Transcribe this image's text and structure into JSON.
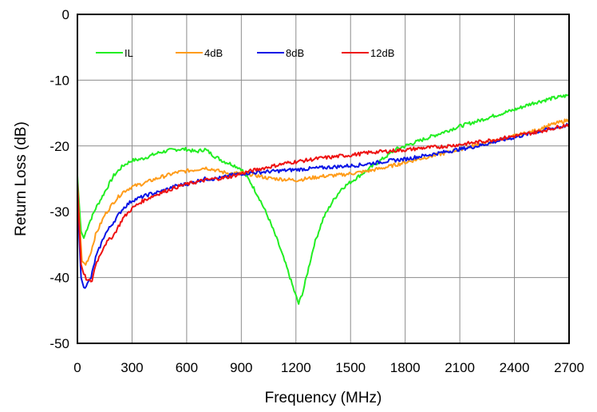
{
  "chart_data": {
    "type": "line",
    "title": "",
    "xlabel": "Frequency (MHz)",
    "ylabel": "Return Loss (dB)",
    "xlim": [
      0,
      2700
    ],
    "ylim": [
      -50,
      0
    ],
    "x_ticks": [
      0,
      300,
      600,
      900,
      1200,
      1500,
      1800,
      2100,
      2400,
      2700
    ],
    "y_ticks": [
      0,
      -10,
      -20,
      -30,
      -40,
      -50
    ],
    "grid": true,
    "legend_position": "top-left, inside plot, single row",
    "series": [
      {
        "name": "IL",
        "color": "#22ee22",
        "points": [
          [
            0,
            -24.5
          ],
          [
            10,
            -29
          ],
          [
            20,
            -33
          ],
          [
            35,
            -34
          ],
          [
            60,
            -32
          ],
          [
            100,
            -29.5
          ],
          [
            150,
            -27
          ],
          [
            200,
            -24.5
          ],
          [
            250,
            -23
          ],
          [
            300,
            -22.2
          ],
          [
            350,
            -22
          ],
          [
            400,
            -21.5
          ],
          [
            450,
            -21
          ],
          [
            500,
            -20.7
          ],
          [
            550,
            -20.5
          ],
          [
            600,
            -20.5
          ],
          [
            650,
            -20.9
          ],
          [
            700,
            -20.5
          ],
          [
            750,
            -21.5
          ],
          [
            800,
            -22.3
          ],
          [
            850,
            -22.8
          ],
          [
            900,
            -23.5
          ],
          [
            950,
            -25.5
          ],
          [
            1000,
            -28
          ],
          [
            1050,
            -31
          ],
          [
            1100,
            -34.5
          ],
          [
            1150,
            -38.5
          ],
          [
            1190,
            -42
          ],
          [
            1215,
            -44
          ],
          [
            1240,
            -42
          ],
          [
            1270,
            -38.5
          ],
          [
            1300,
            -35
          ],
          [
            1350,
            -31
          ],
          [
            1400,
            -28.5
          ],
          [
            1450,
            -26.5
          ],
          [
            1500,
            -25.5
          ],
          [
            1550,
            -24.5
          ],
          [
            1600,
            -23.5
          ],
          [
            1650,
            -22.5
          ],
          [
            1700,
            -21.5
          ],
          [
            1750,
            -20.5
          ],
          [
            1800,
            -20
          ],
          [
            1900,
            -19
          ],
          [
            2000,
            -18
          ],
          [
            2100,
            -17
          ],
          [
            2200,
            -16.2
          ],
          [
            2300,
            -15.3
          ],
          [
            2400,
            -14.5
          ],
          [
            2500,
            -13.5
          ],
          [
            2600,
            -12.8
          ],
          [
            2700,
            -12.3
          ]
        ]
      },
      {
        "name": "4dB",
        "color": "#ff9c1a",
        "points": [
          [
            0,
            -25.5
          ],
          [
            10,
            -31
          ],
          [
            25,
            -37.5
          ],
          [
            45,
            -38
          ],
          [
            70,
            -36.5
          ],
          [
            100,
            -33.5
          ],
          [
            150,
            -30.5
          ],
          [
            200,
            -28.5
          ],
          [
            250,
            -27
          ],
          [
            300,
            -26.2
          ],
          [
            350,
            -25.8
          ],
          [
            400,
            -25.3
          ],
          [
            450,
            -24.8
          ],
          [
            500,
            -24.4
          ],
          [
            550,
            -24
          ],
          [
            600,
            -23.8
          ],
          [
            650,
            -23.6
          ],
          [
            700,
            -23.3
          ],
          [
            750,
            -23.6
          ],
          [
            800,
            -24
          ],
          [
            850,
            -24.2
          ],
          [
            900,
            -24.1
          ],
          [
            950,
            -24.3
          ],
          [
            1000,
            -24.6
          ],
          [
            1050,
            -24.9
          ],
          [
            1100,
            -25
          ],
          [
            1150,
            -25.1
          ],
          [
            1200,
            -25.2
          ],
          [
            1250,
            -25
          ],
          [
            1300,
            -24.8
          ],
          [
            1350,
            -24.6
          ],
          [
            1400,
            -24.5
          ],
          [
            1450,
            -24.4
          ],
          [
            1500,
            -24.2
          ],
          [
            1550,
            -24
          ],
          [
            1600,
            -23.8
          ],
          [
            1650,
            -23.5
          ],
          [
            1700,
            -23.2
          ],
          [
            1800,
            -22.5
          ],
          [
            1900,
            -21.8
          ],
          [
            2000,
            -21.2
          ],
          [
            2100,
            -20.5
          ],
          [
            2200,
            -19.8
          ],
          [
            2300,
            -19.2
          ],
          [
            2400,
            -18.5
          ],
          [
            2500,
            -17.8
          ],
          [
            2600,
            -16.8
          ],
          [
            2700,
            -16
          ]
        ]
      },
      {
        "name": "8dB",
        "color": "#0a14e6",
        "points": [
          [
            0,
            -25.5
          ],
          [
            10,
            -34
          ],
          [
            20,
            -40
          ],
          [
            35,
            -41.5
          ],
          [
            55,
            -41
          ],
          [
            75,
            -40
          ],
          [
            100,
            -37
          ],
          [
            150,
            -33.5
          ],
          [
            200,
            -31.5
          ],
          [
            250,
            -29.5
          ],
          [
            300,
            -28.3
          ],
          [
            350,
            -27.8
          ],
          [
            400,
            -27.3
          ],
          [
            450,
            -27
          ],
          [
            500,
            -26.5
          ],
          [
            550,
            -26
          ],
          [
            600,
            -25.8
          ],
          [
            650,
            -25.4
          ],
          [
            700,
            -25
          ],
          [
            750,
            -25
          ],
          [
            800,
            -24.8
          ],
          [
            850,
            -24.4
          ],
          [
            900,
            -24.2
          ],
          [
            950,
            -24.1
          ],
          [
            1000,
            -24
          ],
          [
            1050,
            -23.9
          ],
          [
            1100,
            -23.8
          ],
          [
            1150,
            -23.7
          ],
          [
            1200,
            -23.6
          ],
          [
            1250,
            -23.5
          ],
          [
            1300,
            -23.4
          ],
          [
            1350,
            -23.3
          ],
          [
            1400,
            -23.2
          ],
          [
            1450,
            -23.1
          ],
          [
            1500,
            -23
          ],
          [
            1550,
            -22.9
          ],
          [
            1600,
            -22.7
          ],
          [
            1650,
            -22.5
          ],
          [
            1700,
            -22.3
          ],
          [
            1800,
            -22
          ],
          [
            1900,
            -21.5
          ],
          [
            2000,
            -21
          ],
          [
            2100,
            -20.5
          ],
          [
            2200,
            -20
          ],
          [
            2300,
            -19.3
          ],
          [
            2400,
            -18.7
          ],
          [
            2500,
            -18
          ],
          [
            2600,
            -17.4
          ],
          [
            2700,
            -16.8
          ]
        ]
      },
      {
        "name": "12dB",
        "color": "#ee1111",
        "points": [
          [
            0,
            -25.5
          ],
          [
            10,
            -32
          ],
          [
            20,
            -38
          ],
          [
            35,
            -39.5
          ],
          [
            55,
            -40.5
          ],
          [
            80,
            -40.5
          ],
          [
            100,
            -38
          ],
          [
            150,
            -35
          ],
          [
            200,
            -33.5
          ],
          [
            250,
            -31
          ],
          [
            300,
            -29.5
          ],
          [
            350,
            -28.5
          ],
          [
            400,
            -27.8
          ],
          [
            450,
            -27.2
          ],
          [
            500,
            -26.7
          ],
          [
            550,
            -26.2
          ],
          [
            600,
            -25.8
          ],
          [
            650,
            -25.5
          ],
          [
            700,
            -25.2
          ],
          [
            750,
            -25
          ],
          [
            800,
            -24.9
          ],
          [
            850,
            -24.6
          ],
          [
            900,
            -24.2
          ],
          [
            950,
            -23.8
          ],
          [
            1000,
            -23.5
          ],
          [
            1050,
            -23.2
          ],
          [
            1100,
            -22.9
          ],
          [
            1150,
            -22.6
          ],
          [
            1200,
            -22.4
          ],
          [
            1250,
            -22.2
          ],
          [
            1300,
            -22
          ],
          [
            1350,
            -21.8
          ],
          [
            1400,
            -21.7
          ],
          [
            1450,
            -21.5
          ],
          [
            1500,
            -21.4
          ],
          [
            1550,
            -21.2
          ],
          [
            1600,
            -21
          ],
          [
            1650,
            -20.9
          ],
          [
            1700,
            -20.8
          ],
          [
            1800,
            -20.6
          ],
          [
            1900,
            -20.3
          ],
          [
            2000,
            -20.1
          ],
          [
            2100,
            -19.8
          ],
          [
            2200,
            -19.4
          ],
          [
            2300,
            -19
          ],
          [
            2400,
            -18.5
          ],
          [
            2500,
            -18
          ],
          [
            2600,
            -17.4
          ],
          [
            2700,
            -16.7
          ]
        ]
      }
    ]
  }
}
